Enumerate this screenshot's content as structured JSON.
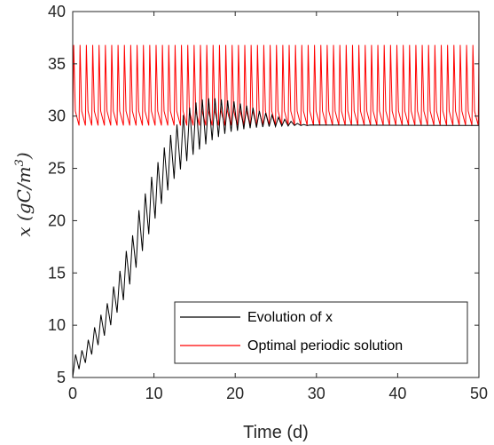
{
  "chart_data": {
    "type": "line",
    "xlabel": "Time (d)",
    "ylabel": "x (gC/m3)",
    "xlim": [
      0,
      50
    ],
    "ylim": [
      5,
      40
    ],
    "xticks": [
      0,
      10,
      20,
      30,
      40,
      50
    ],
    "yticks": [
      5,
      10,
      15,
      20,
      25,
      30,
      35,
      40
    ],
    "grid": false,
    "legend_position": "bottom-right",
    "period_days": 0.78,
    "series": [
      {
        "name": "Evolution of x",
        "color": "#000000",
        "peaks": [
          [
            0.35,
            7.2
          ],
          [
            1.13,
            7.6
          ],
          [
            1.91,
            8.6
          ],
          [
            2.69,
            9.8
          ],
          [
            3.47,
            11.0
          ],
          [
            4.25,
            12.1
          ],
          [
            5.03,
            13.7
          ],
          [
            5.81,
            15.2
          ],
          [
            6.59,
            17.1
          ],
          [
            7.37,
            18.6
          ],
          [
            8.15,
            21.0
          ],
          [
            8.93,
            22.6
          ],
          [
            9.71,
            24.2
          ],
          [
            10.49,
            25.6
          ],
          [
            11.27,
            27.0
          ],
          [
            12.05,
            28.2
          ],
          [
            12.83,
            29.2
          ],
          [
            13.61,
            30.1
          ],
          [
            14.39,
            30.8
          ],
          [
            15.17,
            31.3
          ],
          [
            15.95,
            31.6
          ],
          [
            16.73,
            31.7
          ],
          [
            17.51,
            31.7
          ],
          [
            18.29,
            31.6
          ],
          [
            19.07,
            31.5
          ],
          [
            19.85,
            31.4
          ],
          [
            20.63,
            31.2
          ],
          [
            21.41,
            31.0
          ],
          [
            22.19,
            30.8
          ],
          [
            22.97,
            30.5
          ],
          [
            23.75,
            30.3
          ],
          [
            24.53,
            30.1
          ],
          [
            25.31,
            29.9
          ],
          [
            26.09,
            29.7
          ],
          [
            26.87,
            29.5
          ],
          [
            27.65,
            29.3
          ],
          [
            28.43,
            29.2
          ],
          [
            29.21,
            29.15
          ]
        ],
        "troughs": [
          [
            0.0,
            5.0
          ],
          [
            0.78,
            5.8
          ],
          [
            1.56,
            6.4
          ],
          [
            2.34,
            7.2
          ],
          [
            3.12,
            8.1
          ],
          [
            3.9,
            9.0
          ],
          [
            4.68,
            10.0
          ],
          [
            5.46,
            11.2
          ],
          [
            6.24,
            12.4
          ],
          [
            7.02,
            13.9
          ],
          [
            7.8,
            15.5
          ],
          [
            8.58,
            17.1
          ],
          [
            9.36,
            18.7
          ],
          [
            10.14,
            20.2
          ],
          [
            10.92,
            21.6
          ],
          [
            11.7,
            22.9
          ],
          [
            12.48,
            24.0
          ],
          [
            13.26,
            24.9
          ],
          [
            14.04,
            25.7
          ],
          [
            14.82,
            26.3
          ],
          [
            15.6,
            26.8
          ],
          [
            16.38,
            27.3
          ],
          [
            17.16,
            27.7
          ],
          [
            17.94,
            28.0
          ],
          [
            18.72,
            28.3
          ],
          [
            19.5,
            28.5
          ],
          [
            20.28,
            28.6
          ],
          [
            21.06,
            28.75
          ],
          [
            21.84,
            28.85
          ],
          [
            22.62,
            28.9
          ],
          [
            23.4,
            28.95
          ],
          [
            24.18,
            29.0
          ],
          [
            24.96,
            29.0
          ],
          [
            25.74,
            29.05
          ],
          [
            26.52,
            29.05
          ],
          [
            27.3,
            29.1
          ],
          [
            28.08,
            29.1
          ],
          [
            28.86,
            29.1
          ],
          [
            50.0,
            29.1
          ]
        ]
      },
      {
        "name": "Optimal periodic solution",
        "color": "#ff0000",
        "min": 29.1,
        "max": 36.8,
        "x_start": 0,
        "x_end": 50
      }
    ]
  }
}
